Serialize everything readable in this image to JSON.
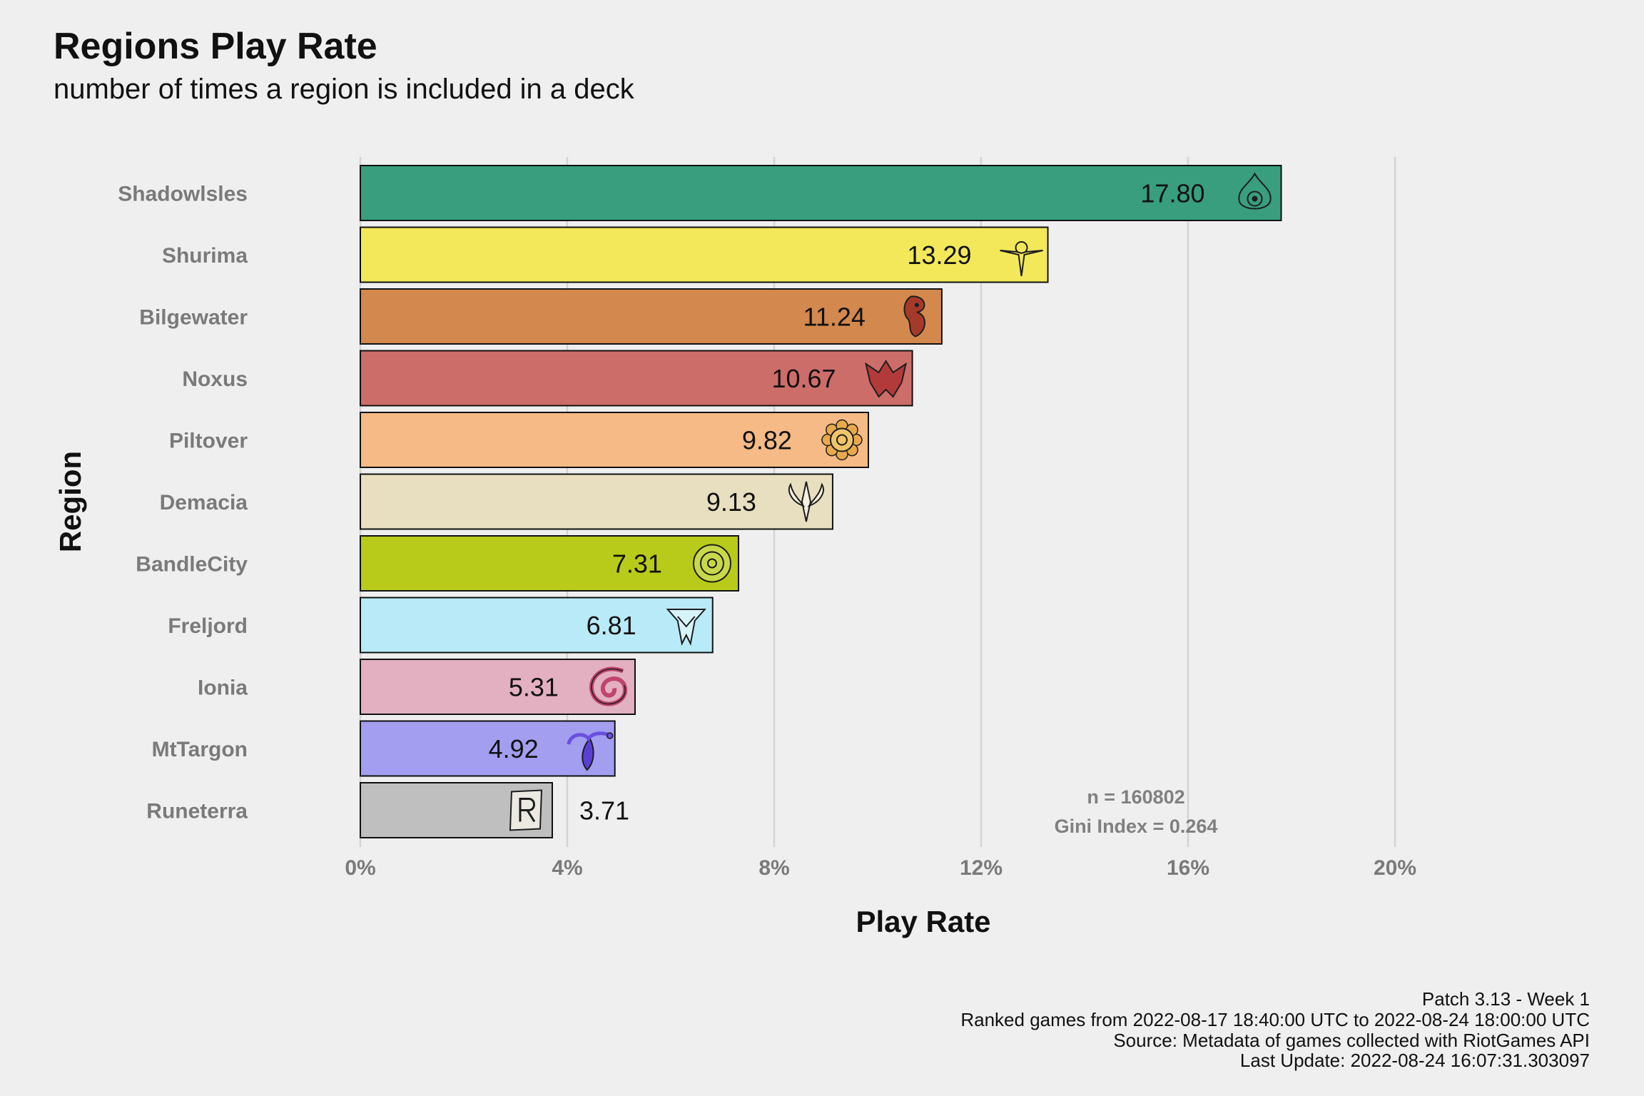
{
  "title": "Regions Play Rate",
  "subtitle": "number of times a region is included in a deck",
  "chart_data": {
    "type": "bar",
    "orientation": "horizontal",
    "categories": [
      "Shadowlsles",
      "Shurima",
      "Bilgewater",
      "Noxus",
      "Piltover",
      "Demacia",
      "BandleCity",
      "Freljord",
      "Ionia",
      "MtTargon",
      "Runeterra"
    ],
    "values": [
      17.8,
      13.29,
      11.24,
      10.67,
      9.82,
      9.13,
      7.31,
      6.81,
      5.31,
      4.92,
      3.71
    ],
    "value_labels": [
      "17.80",
      "13.29",
      "11.24",
      "10.67",
      "9.82",
      "9.13",
      "7.31",
      "6.81",
      "5.31",
      "4.92",
      "3.71"
    ],
    "colors": [
      "#389e7e",
      "#f2e85a",
      "#d3884d",
      "#cd6d6a",
      "#f5ba85",
      "#e8dfc1",
      "#b8cb1a",
      "#b8ebf7",
      "#e3b0c1",
      "#a39ef0",
      "#bfbfbf"
    ],
    "icons": [
      "shadow-isles-icon",
      "shurima-icon",
      "bilgewater-icon",
      "noxus-icon",
      "piltover-icon",
      "demacia-icon",
      "bandle-city-icon",
      "freljord-icon",
      "ionia-icon",
      "mt-targon-icon",
      "runeterra-icon"
    ],
    "xlabel": "Play Rate",
    "ylabel": "Region",
    "xlim": [
      0,
      20
    ],
    "xticks": [
      0,
      4,
      8,
      12,
      16,
      20
    ],
    "xtick_labels": [
      "0%",
      "4%",
      "8%",
      "12%",
      "16%",
      "20%"
    ],
    "grid": "vertical",
    "annotations": [
      "n = 160802",
      "Gini Index = 0.264"
    ]
  },
  "caption": [
    "Patch 3.13 - Week 1",
    "Ranked games from 2022-08-17 18:40:00 UTC to 2022-08-24 18:00:00 UTC",
    "Source: Metadata of games collected with RiotGames API",
    "Last Update: 2022-08-24 16:07:31.303097"
  ]
}
